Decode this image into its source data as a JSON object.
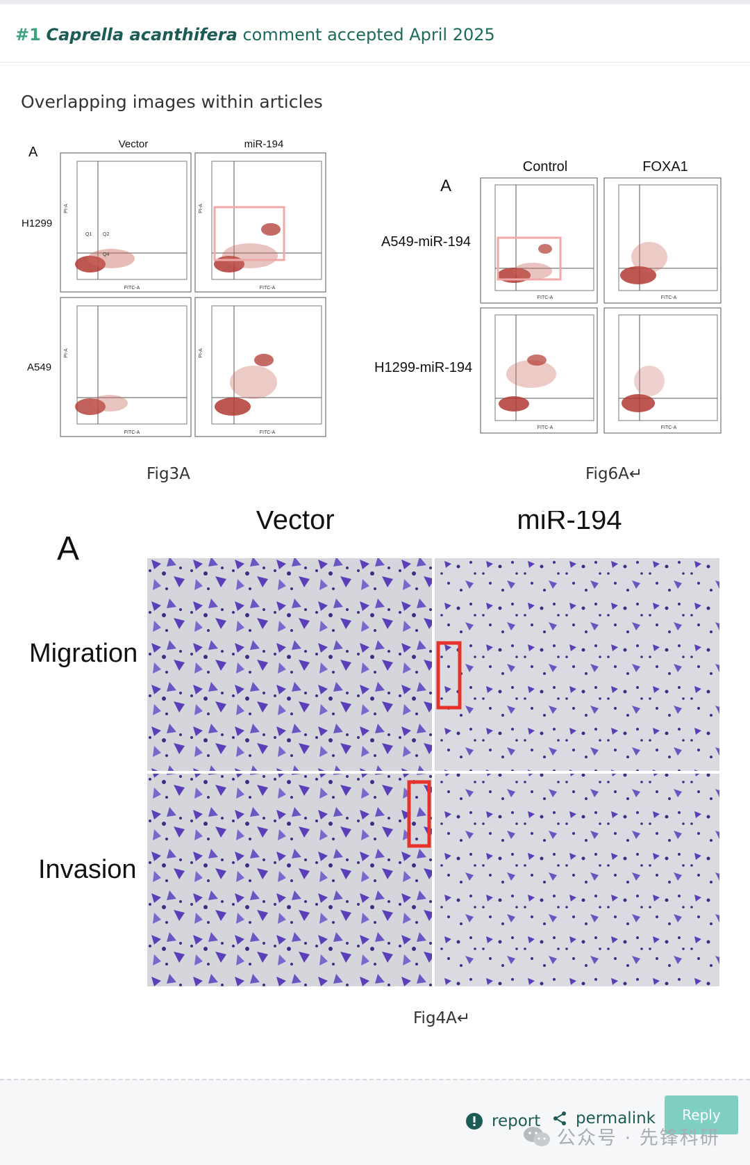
{
  "comment": {
    "number": "#1",
    "author": "Caprella acanthifera",
    "status": "comment accepted April 2025"
  },
  "section_title": "Overlapping images within articles",
  "fig3a": {
    "panel_letter": "A",
    "col_labels": [
      "Vector",
      "miR-194"
    ],
    "row_labels": [
      "H1299",
      "A549"
    ],
    "quadrant_labels": [
      "Q1",
      "Q2",
      "Q4"
    ],
    "x_axis_label": "FITC-A",
    "y_axis_label": "PI-A",
    "caption": "Fig3A"
  },
  "fig6a": {
    "panel_letter": "A",
    "col_labels": [
      "Control",
      "FOXA1"
    ],
    "row_labels": [
      "A549-miR-194",
      "H1299-miR-194"
    ],
    "x_axis_label": "FITC-A",
    "caption": "Fig6A↵"
  },
  "fig4a": {
    "panel_letter": "A",
    "col_labels": [
      "Vector",
      "miR-194"
    ],
    "row_labels": [
      "Migration",
      "Invasion"
    ],
    "caption": "Fig4A↵"
  },
  "footer": {
    "report_label": "report",
    "permalink_label": "permalink",
    "reply_label": "Reply"
  },
  "watermark": {
    "text": "公众号 · 先锋科研"
  },
  "colors": {
    "accent_green": "#3aa381",
    "heading_teal": "#1d5c55",
    "reply_button": "#7fcfc3",
    "highlight_red": "#e6322a",
    "highlight_pink": "#f4b8b8",
    "cell_stain": "#5a3fb8"
  }
}
